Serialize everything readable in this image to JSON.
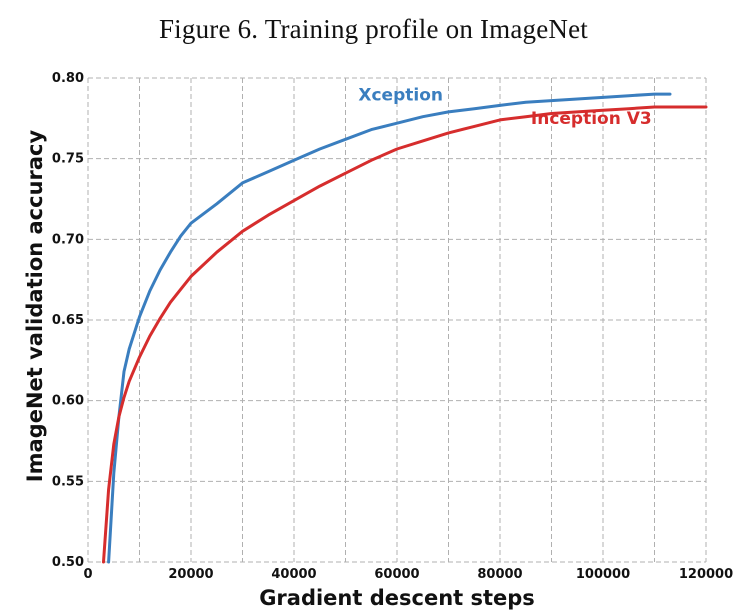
{
  "figure": {
    "title": "Figure 6. Training profile on ImageNet"
  },
  "chart_data": {
    "type": "line",
    "title": "",
    "xlabel": "Gradient descent steps",
    "ylabel": "ImageNet validation accuracy",
    "xlim": [
      0,
      120000
    ],
    "ylim": [
      0.5,
      0.8
    ],
    "xticks": [
      0,
      20000,
      40000,
      60000,
      80000,
      100000,
      120000
    ],
    "xtick_labels": [
      "0",
      "20000",
      "40000",
      "60000",
      "80000",
      "100000",
      "120000"
    ],
    "yticks": [
      0.5,
      0.55,
      0.6,
      0.65,
      0.7,
      0.75,
      0.8
    ],
    "ytick_labels": [
      "0.50",
      "0.55",
      "0.60",
      "0.65",
      "0.70",
      "0.75",
      "0.80"
    ],
    "grid": true,
    "grid_style": "dashed",
    "series": [
      {
        "name": "Xception",
        "color": "#3a7ebf",
        "x": [
          4000,
          5000,
          6000,
          7000,
          8000,
          10000,
          12000,
          14000,
          16000,
          18000,
          20000,
          25000,
          30000,
          35000,
          40000,
          45000,
          50000,
          55000,
          60000,
          65000,
          70000,
          75000,
          80000,
          85000,
          90000,
          95000,
          100000,
          105000,
          110000,
          113000
        ],
        "y": [
          0.5,
          0.555,
          0.59,
          0.618,
          0.632,
          0.652,
          0.668,
          0.681,
          0.692,
          0.702,
          0.71,
          0.722,
          0.735,
          0.742,
          0.749,
          0.756,
          0.762,
          0.768,
          0.772,
          0.776,
          0.779,
          0.781,
          0.783,
          0.785,
          0.786,
          0.787,
          0.788,
          0.789,
          0.79,
          0.79
        ]
      },
      {
        "name": "Inception V3",
        "color": "#d62d2d",
        "x": [
          3000,
          4000,
          5000,
          6000,
          7000,
          8000,
          10000,
          12000,
          14000,
          16000,
          18000,
          20000,
          25000,
          30000,
          35000,
          40000,
          45000,
          50000,
          55000,
          60000,
          65000,
          70000,
          75000,
          80000,
          85000,
          90000,
          95000,
          100000,
          105000,
          110000,
          115000,
          120000
        ],
        "y": [
          0.5,
          0.545,
          0.573,
          0.59,
          0.602,
          0.612,
          0.627,
          0.64,
          0.651,
          0.661,
          0.669,
          0.677,
          0.692,
          0.705,
          0.715,
          0.724,
          0.733,
          0.741,
          0.749,
          0.756,
          0.761,
          0.766,
          0.77,
          0.774,
          0.776,
          0.778,
          0.779,
          0.78,
          0.781,
          0.782,
          0.782,
          0.782
        ]
      }
    ],
    "annotations": [
      {
        "text": "Xception",
        "series": "Xception",
        "x": 52500,
        "y": 0.786
      },
      {
        "text": "Inception V3",
        "series": "Inception V3",
        "x": 86000,
        "y": 0.7715
      }
    ]
  }
}
